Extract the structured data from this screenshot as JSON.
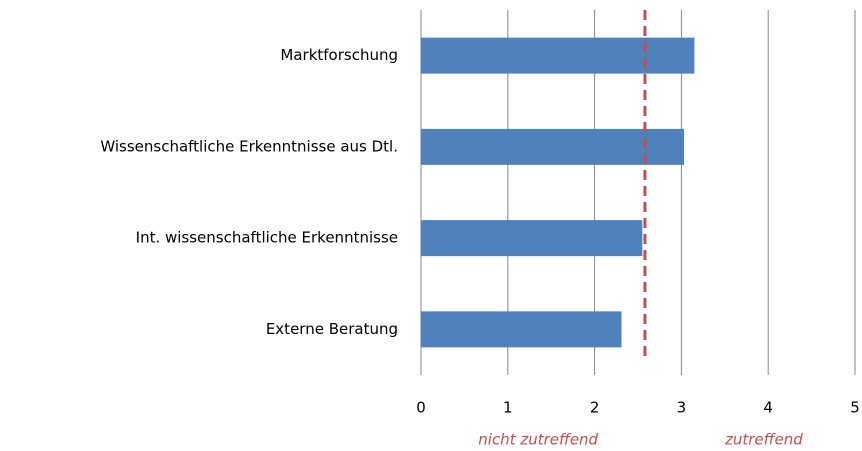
{
  "chart_data": {
    "type": "barh",
    "categories": [
      "Marktforschung",
      "Wissenschaftliche Erkenntnisse aus Dtl.",
      "Int. wissenschaftliche Erkenntnisse",
      "Externe Beratung"
    ],
    "values": [
      3.15,
      3.03,
      2.55,
      2.31
    ],
    "color": "#4f81bd",
    "xlim": [
      0,
      5
    ],
    "xticks": [
      0,
      1,
      2,
      3,
      4,
      5
    ],
    "grid": true,
    "reference_line": {
      "value": 2.58,
      "color": "#c0504d"
    },
    "annotations": [
      "nicht zutreffend",
      "zutreffend"
    ]
  }
}
